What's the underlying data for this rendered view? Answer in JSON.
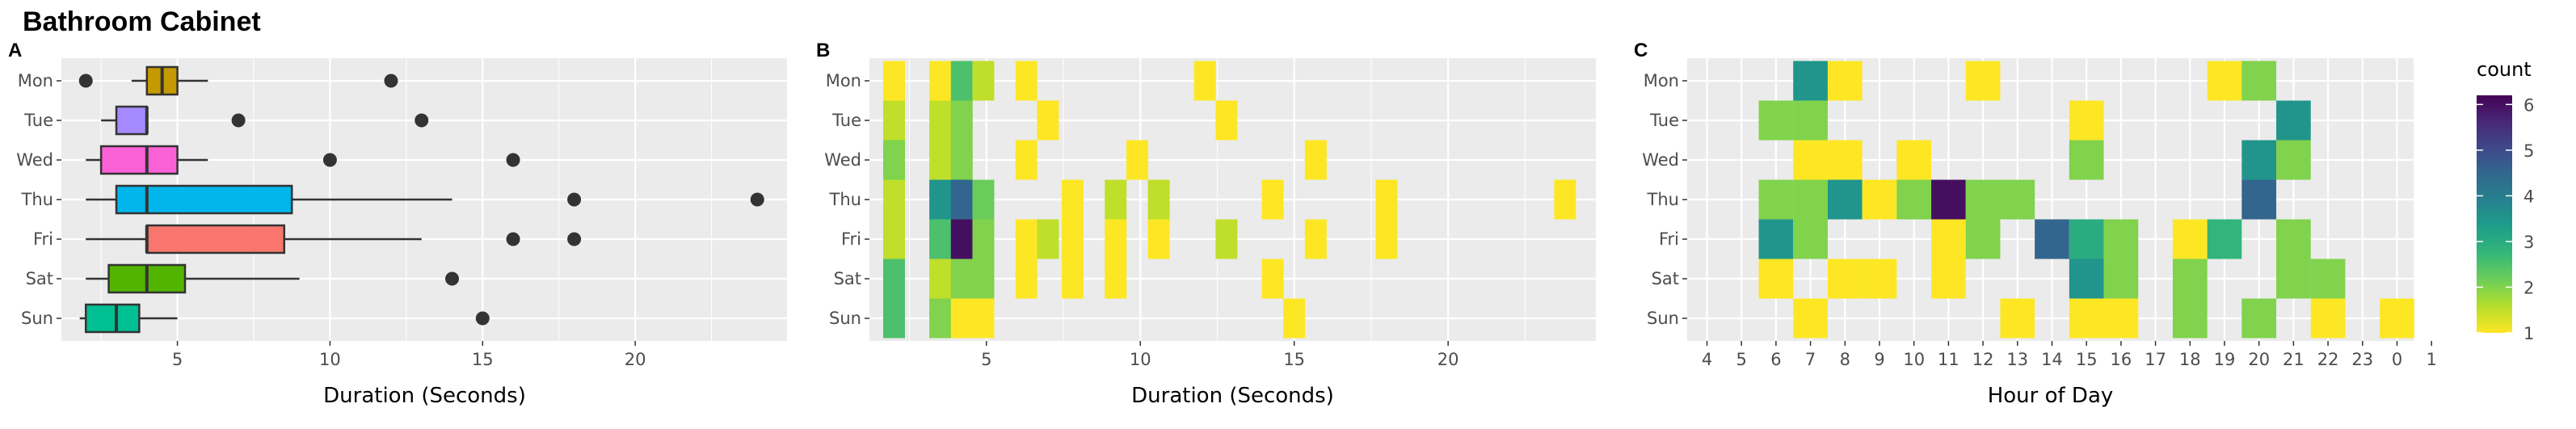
{
  "title": "Bathroom Cabinet",
  "chart_data": [
    {
      "panel": "A",
      "type": "boxplot",
      "xlabel": "Duration (Seconds)",
      "ylabel": "",
      "xlim": [
        1.2,
        25
      ],
      "xticks": [
        5,
        10,
        15,
        20
      ],
      "categories": [
        "Mon",
        "Tue",
        "Wed",
        "Thu",
        "Fri",
        "Sat",
        "Sun"
      ],
      "grid": true,
      "boxes": [
        {
          "cat": "Mon",
          "min": 3.5,
          "q1": 4,
          "median": 4.5,
          "q3": 5,
          "max": 6,
          "outliers": [
            2,
            12
          ],
          "color": "#C49A00"
        },
        {
          "cat": "Tue",
          "min": 2.5,
          "q1": 3,
          "median": 4,
          "q3": 4,
          "max": 4,
          "outliers": [
            7,
            13
          ],
          "color": "#A58AFF"
        },
        {
          "cat": "Wed",
          "min": 2,
          "q1": 2.5,
          "median": 4,
          "q3": 5,
          "max": 6,
          "outliers": [
            10,
            16
          ],
          "color": "#FB61D7"
        },
        {
          "cat": "Thu",
          "min": 2,
          "q1": 3,
          "median": 4,
          "q3": 8.75,
          "max": 14,
          "outliers": [
            18,
            24
          ],
          "color": "#00B6EB"
        },
        {
          "cat": "Fri",
          "min": 2,
          "q1": 4,
          "median": 4,
          "q3": 8.5,
          "max": 13,
          "outliers": [
            16,
            18
          ],
          "color": "#F8766D"
        },
        {
          "cat": "Sat",
          "min": 2,
          "q1": 2.75,
          "median": 4,
          "q3": 5.25,
          "max": 9,
          "outliers": [
            14
          ],
          "color": "#53B400"
        },
        {
          "cat": "Sun",
          "min": 1.8,
          "q1": 2,
          "median": 3,
          "q3": 3.75,
          "max": 5,
          "outliers": [
            15
          ],
          "color": "#00C094"
        }
      ]
    },
    {
      "panel": "B",
      "type": "heatmap",
      "xlabel": "Duration (Seconds)",
      "ylabel": "",
      "xlim": [
        1.2,
        24.8
      ],
      "xticks": [
        5,
        10,
        15,
        20
      ],
      "categories": [
        "Mon",
        "Tue",
        "Wed",
        "Thu",
        "Fri",
        "Sat",
        "Sun"
      ],
      "cells": [
        {
          "y": "Mon",
          "x": 2,
          "count": 1
        },
        {
          "y": "Mon",
          "x": 3.5,
          "count": 1
        },
        {
          "y": "Mon",
          "x": 4.2,
          "count": 2.5
        },
        {
          "y": "Mon",
          "x": 4.9,
          "count": 1.5
        },
        {
          "y": "Mon",
          "x": 6.3,
          "count": 1
        },
        {
          "y": "Mon",
          "x": 12.1,
          "count": 1
        },
        {
          "y": "Tue",
          "x": 2,
          "count": 1.5
        },
        {
          "y": "Tue",
          "x": 3.5,
          "count": 1.5
        },
        {
          "y": "Tue",
          "x": 4.2,
          "count": 2
        },
        {
          "y": "Tue",
          "x": 7,
          "count": 1
        },
        {
          "y": "Tue",
          "x": 12.8,
          "count": 1
        },
        {
          "y": "Wed",
          "x": 2,
          "count": 2
        },
        {
          "y": "Wed",
          "x": 3.5,
          "count": 1.5
        },
        {
          "y": "Wed",
          "x": 4.2,
          "count": 2
        },
        {
          "y": "Wed",
          "x": 6.3,
          "count": 1
        },
        {
          "y": "Wed",
          "x": 9.9,
          "count": 1
        },
        {
          "y": "Wed",
          "x": 15.7,
          "count": 1
        },
        {
          "y": "Thu",
          "x": 2,
          "count": 1.5
        },
        {
          "y": "Thu",
          "x": 3.5,
          "count": 3.5
        },
        {
          "y": "Thu",
          "x": 4.2,
          "count": 4.5
        },
        {
          "y": "Thu",
          "x": 4.9,
          "count": 2.2
        },
        {
          "y": "Thu",
          "x": 7.8,
          "count": 1
        },
        {
          "y": "Thu",
          "x": 9.2,
          "count": 1.5
        },
        {
          "y": "Thu",
          "x": 10.6,
          "count": 1.5
        },
        {
          "y": "Thu",
          "x": 14.3,
          "count": 1
        },
        {
          "y": "Thu",
          "x": 18,
          "count": 1
        },
        {
          "y": "Thu",
          "x": 23.8,
          "count": 1
        },
        {
          "y": "Fri",
          "x": 2,
          "count": 1.5
        },
        {
          "y": "Fri",
          "x": 3.5,
          "count": 2.5
        },
        {
          "y": "Fri",
          "x": 4.2,
          "count": 6
        },
        {
          "y": "Fri",
          "x": 4.9,
          "count": 2
        },
        {
          "y": "Fri",
          "x": 6.3,
          "count": 1
        },
        {
          "y": "Fri",
          "x": 7,
          "count": 1.5
        },
        {
          "y": "Fri",
          "x": 7.8,
          "count": 1
        },
        {
          "y": "Fri",
          "x": 9.2,
          "count": 1
        },
        {
          "y": "Fri",
          "x": 10.6,
          "count": 1
        },
        {
          "y": "Fri",
          "x": 12.8,
          "count": 1.5
        },
        {
          "y": "Fri",
          "x": 15.7,
          "count": 1
        },
        {
          "y": "Fri",
          "x": 18,
          "count": 1
        },
        {
          "y": "Sat",
          "x": 2,
          "count": 2.5
        },
        {
          "y": "Sat",
          "x": 3.5,
          "count": 1.5
        },
        {
          "y": "Sat",
          "x": 4.2,
          "count": 2
        },
        {
          "y": "Sat",
          "x": 4.9,
          "count": 2
        },
        {
          "y": "Sat",
          "x": 6.3,
          "count": 1
        },
        {
          "y": "Sat",
          "x": 7.8,
          "count": 1
        },
        {
          "y": "Sat",
          "x": 9.2,
          "count": 1
        },
        {
          "y": "Sat",
          "x": 14.3,
          "count": 1
        },
        {
          "y": "Sun",
          "x": 2,
          "count": 2.5
        },
        {
          "y": "Sun",
          "x": 3.5,
          "count": 2
        },
        {
          "y": "Sun",
          "x": 4.2,
          "count": 1
        },
        {
          "y": "Sun",
          "x": 4.9,
          "count": 1
        },
        {
          "y": "Sun",
          "x": 15,
          "count": 1
        }
      ]
    },
    {
      "panel": "C",
      "type": "heatmap",
      "xlabel": "Hour of Day",
      "ylabel": "",
      "xticks": [
        "4",
        "5",
        "6",
        "7",
        "8",
        "9",
        "10",
        "11",
        "12",
        "13",
        "14",
        "15",
        "16",
        "17",
        "18",
        "19",
        "20",
        "21",
        "22",
        "23",
        "0",
        "1"
      ],
      "categories": [
        "Mon",
        "Tue",
        "Wed",
        "Thu",
        "Fri",
        "Sat",
        "Sun"
      ],
      "cells": [
        {
          "y": "Mon",
          "x": "7",
          "count": 3.5
        },
        {
          "y": "Mon",
          "x": "8",
          "count": 1
        },
        {
          "y": "Mon",
          "x": "12",
          "count": 1
        },
        {
          "y": "Mon",
          "x": "19",
          "count": 1
        },
        {
          "y": "Mon",
          "x": "20",
          "count": 2
        },
        {
          "y": "Tue",
          "x": "6",
          "count": 2
        },
        {
          "y": "Tue",
          "x": "7",
          "count": 2
        },
        {
          "y": "Tue",
          "x": "15",
          "count": 1
        },
        {
          "y": "Tue",
          "x": "21",
          "count": 3.5
        },
        {
          "y": "Wed",
          "x": "7",
          "count": 1
        },
        {
          "y": "Wed",
          "x": "8",
          "count": 1
        },
        {
          "y": "Wed",
          "x": "10",
          "count": 1
        },
        {
          "y": "Wed",
          "x": "15",
          "count": 2
        },
        {
          "y": "Wed",
          "x": "20",
          "count": 3.5
        },
        {
          "y": "Wed",
          "x": "21",
          "count": 2
        },
        {
          "y": "Thu",
          "x": "6",
          "count": 2
        },
        {
          "y": "Thu",
          "x": "7",
          "count": 2
        },
        {
          "y": "Thu",
          "x": "8",
          "count": 3.5
        },
        {
          "y": "Thu",
          "x": "9",
          "count": 1
        },
        {
          "y": "Thu",
          "x": "10",
          "count": 2
        },
        {
          "y": "Thu",
          "x": "11",
          "count": 6
        },
        {
          "y": "Thu",
          "x": "12",
          "count": 2
        },
        {
          "y": "Thu",
          "x": "13",
          "count": 2
        },
        {
          "y": "Thu",
          "x": "20",
          "count": 4.5
        },
        {
          "y": "Fri",
          "x": "6",
          "count": 3.5
        },
        {
          "y": "Fri",
          "x": "7",
          "count": 2
        },
        {
          "y": "Fri",
          "x": "11",
          "count": 1
        },
        {
          "y": "Fri",
          "x": "12",
          "count": 2
        },
        {
          "y": "Fri",
          "x": "14",
          "count": 4.5
        },
        {
          "y": "Fri",
          "x": "15",
          "count": 3
        },
        {
          "y": "Fri",
          "x": "16",
          "count": 2
        },
        {
          "y": "Fri",
          "x": "18",
          "count": 1
        },
        {
          "y": "Fri",
          "x": "19",
          "count": 2.8
        },
        {
          "y": "Fri",
          "x": "21",
          "count": 2
        },
        {
          "y": "Sat",
          "x": "6",
          "count": 1
        },
        {
          "y": "Sat",
          "x": "8",
          "count": 1
        },
        {
          "y": "Sat",
          "x": "9",
          "count": 1
        },
        {
          "y": "Sat",
          "x": "11",
          "count": 1
        },
        {
          "y": "Sat",
          "x": "15",
          "count": 3.5
        },
        {
          "y": "Sat",
          "x": "16",
          "count": 2
        },
        {
          "y": "Sat",
          "x": "18",
          "count": 2
        },
        {
          "y": "Sat",
          "x": "21",
          "count": 2
        },
        {
          "y": "Sat",
          "x": "22",
          "count": 2
        },
        {
          "y": "Sun",
          "x": "7",
          "count": 1
        },
        {
          "y": "Sun",
          "x": "13",
          "count": 1
        },
        {
          "y": "Sun",
          "x": "15",
          "count": 1
        },
        {
          "y": "Sun",
          "x": "16",
          "count": 1
        },
        {
          "y": "Sun",
          "x": "18",
          "count": 2
        },
        {
          "y": "Sun",
          "x": "20",
          "count": 2
        },
        {
          "y": "Sun",
          "x": "22",
          "count": 1
        },
        {
          "y": "Sun",
          "x": "0",
          "count": 1
        }
      ]
    }
  ],
  "legend": {
    "title": "count",
    "ticks": [
      1,
      2,
      3,
      4,
      5,
      6
    ],
    "range": [
      1,
      6.2
    ],
    "palette": "viridis-reversed"
  }
}
